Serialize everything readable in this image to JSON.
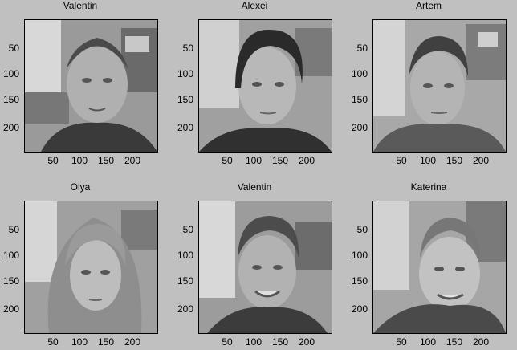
{
  "axes": {
    "y_ticks": [
      "50",
      "100",
      "150",
      "200"
    ],
    "x_ticks": [
      "50",
      "100",
      "150",
      "200"
    ]
  },
  "panels": [
    {
      "title": "Valentin"
    },
    {
      "title": "Alexei"
    },
    {
      "title": "Artem"
    },
    {
      "title": "Olya"
    },
    {
      "title": "Valentin"
    },
    {
      "title": "Katerina"
    }
  ]
}
